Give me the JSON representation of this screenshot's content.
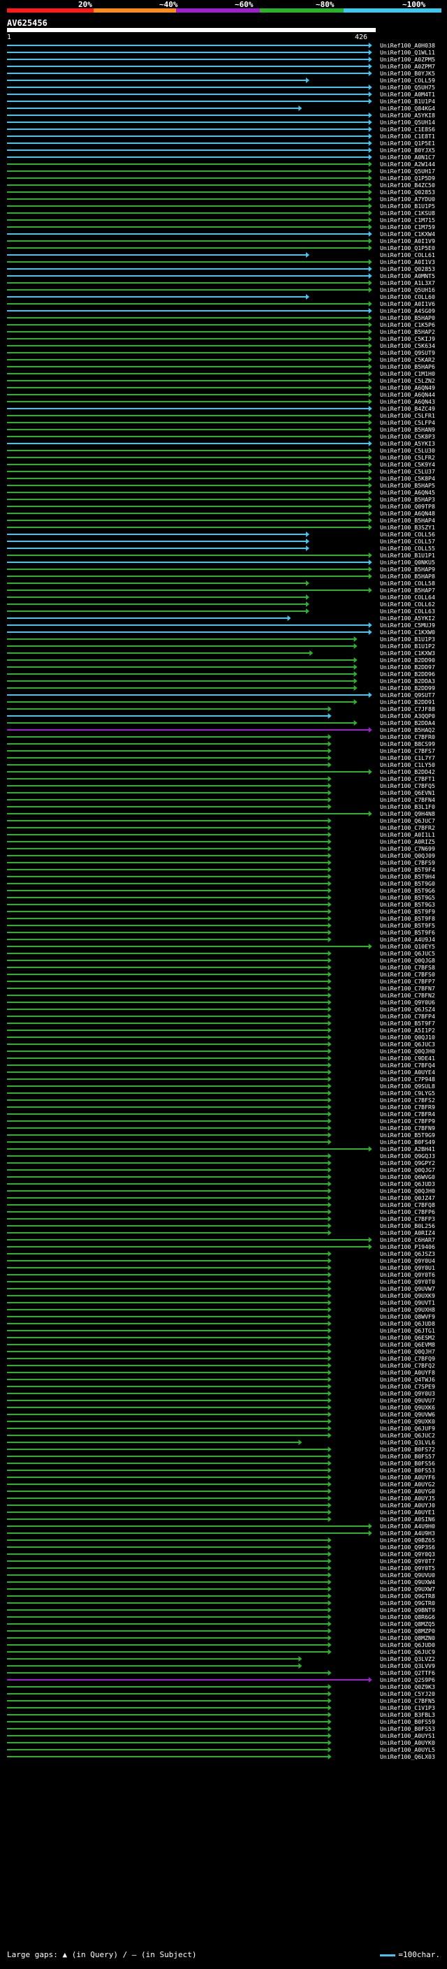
{
  "legend": {
    "labels": [
      "20%",
      "~40%",
      "~60%",
      "~80%",
      "~100%"
    ],
    "colors": [
      "#ff1a1a",
      "#ff8c1a",
      "#a020d0",
      "#2ab32a",
      "#3ec8f0"
    ]
  },
  "query": {
    "id": "AV625456",
    "start": "1",
    "end": "426"
  },
  "footer": {
    "gaps_text": "Large gaps: ▲ (in Query) / — (in Subject)",
    "scale_text": "=100char."
  },
  "hits": [
    {
      "label": "UniRef100_A0H038",
      "c": 4,
      "e": 0.99
    },
    {
      "label": "UniRef100_Q1WL11",
      "c": 4,
      "e": 0.99
    },
    {
      "label": "UniRef100_A0ZPM5",
      "c": 4,
      "e": 0.99
    },
    {
      "label": "UniRef100_A0ZPM7",
      "c": 4,
      "e": 0.99
    },
    {
      "label": "UniRef100_B0YJK5",
      "c": 4,
      "e": 0.99
    },
    {
      "label": "UniRef100_COLL59",
      "c": 4,
      "e": 0.82
    },
    {
      "label": "UniRef100_Q5UH75",
      "c": 4,
      "e": 0.99
    },
    {
      "label": "UniRef100_A0M4T1",
      "c": 4,
      "e": 0.99
    },
    {
      "label": "UniRef100_B1U1P4",
      "c": 4,
      "e": 0.99
    },
    {
      "label": "UniRef100_Q84KG4",
      "c": 4,
      "e": 0.8
    },
    {
      "label": "UniRef100_A5YKI8",
      "c": 4,
      "e": 0.99
    },
    {
      "label": "UniRef100_Q5UH14",
      "c": 4,
      "e": 0.99
    },
    {
      "label": "UniRef100_C1E8S6",
      "c": 4,
      "e": 0.99
    },
    {
      "label": "UniRef100_C1E8T1",
      "c": 4,
      "e": 0.99
    },
    {
      "label": "UniRef100_Q1P5E1",
      "c": 4,
      "e": 0.99
    },
    {
      "label": "UniRef100_B0YJX5",
      "c": 4,
      "e": 0.99
    },
    {
      "label": "UniRef100_A0N1C7",
      "c": 4,
      "e": 0.99
    },
    {
      "label": "UniRef100_A2W144",
      "c": 3,
      "e": 0.99
    },
    {
      "label": "UniRef100_Q5UH17",
      "c": 3,
      "e": 0.99
    },
    {
      "label": "UniRef100_Q1P5D9",
      "c": 3,
      "e": 0.99
    },
    {
      "label": "UniRef100_B4ZC50",
      "c": 3,
      "e": 0.99
    },
    {
      "label": "UniRef100_Q02853",
      "c": 3,
      "e": 0.99
    },
    {
      "label": "UniRef100_A7YDU0",
      "c": 3,
      "e": 0.99
    },
    {
      "label": "UniRef100_B1U1P5",
      "c": 3,
      "e": 0.99
    },
    {
      "label": "UniRef100_C1KSU8",
      "c": 3,
      "e": 0.99
    },
    {
      "label": "UniRef100_C1M715",
      "c": 3,
      "e": 0.99
    },
    {
      "label": "UniRef100_C1M759",
      "c": 3,
      "e": 0.99
    },
    {
      "label": "UniRef100_C1KXW4",
      "c": 4,
      "e": 0.99
    },
    {
      "label": "UniRef100_A0I1V9",
      "c": 3,
      "e": 0.99
    },
    {
      "label": "UniRef100_Q1P5E0",
      "c": 3,
      "e": 0.99
    },
    {
      "label": "UniRef100_COLL61",
      "c": 4,
      "e": 0.82
    },
    {
      "label": "UniRef100_A0I1V3",
      "c": 3,
      "e": 0.99
    },
    {
      "label": "UniRef100_Q02853",
      "c": 4,
      "e": 0.99
    },
    {
      "label": "UniRef100_A0MNT5",
      "c": 4,
      "e": 0.99
    },
    {
      "label": "UniRef100_A1L3X7",
      "c": 3,
      "e": 0.99
    },
    {
      "label": "UniRef100_Q5UH16",
      "c": 3,
      "e": 0.99
    },
    {
      "label": "UniRef100_COLL60",
      "c": 4,
      "e": 0.82
    },
    {
      "label": "UniRef100_A0I1V6",
      "c": 3,
      "e": 0.99
    },
    {
      "label": "UniRef100_A4SG09",
      "c": 4,
      "e": 0.99
    },
    {
      "label": "UniRef100_B5HAP0",
      "c": 3,
      "e": 0.99
    },
    {
      "label": "UniRef100_C1K5P6",
      "c": 3,
      "e": 0.99
    },
    {
      "label": "UniRef100_B5HAP2",
      "c": 3,
      "e": 0.99
    },
    {
      "label": "UniRef100_C5KIJ9",
      "c": 3,
      "e": 0.99
    },
    {
      "label": "UniRef100_C5K634",
      "c": 3,
      "e": 0.99
    },
    {
      "label": "UniRef100_Q9SUT9",
      "c": 3,
      "e": 0.99
    },
    {
      "label": "UniRef100_C5KAR2",
      "c": 3,
      "e": 0.99
    },
    {
      "label": "UniRef100_B5HAP6",
      "c": 3,
      "e": 0.99
    },
    {
      "label": "UniRef100_C1M1H0",
      "c": 3,
      "e": 0.99
    },
    {
      "label": "UniRef100_C5LZN2",
      "c": 3,
      "e": 0.99
    },
    {
      "label": "UniRef100_A6QN49",
      "c": 3,
      "e": 0.99
    },
    {
      "label": "UniRef100_A6QN44",
      "c": 3,
      "e": 0.99
    },
    {
      "label": "UniRef100_A6QN43",
      "c": 3,
      "e": 0.99
    },
    {
      "label": "UniRef100_B4ZC49",
      "c": 4,
      "e": 0.99
    },
    {
      "label": "UniRef100_C5LFR1",
      "c": 3,
      "e": 0.99
    },
    {
      "label": "UniRef100_C5LFP4",
      "c": 3,
      "e": 0.99
    },
    {
      "label": "UniRef100_B5HAN9",
      "c": 3,
      "e": 0.99
    },
    {
      "label": "UniRef100_C5K8P3",
      "c": 3,
      "e": 0.99
    },
    {
      "label": "UniRef100_A5YKI3",
      "c": 4,
      "e": 0.99
    },
    {
      "label": "UniRef100_C5LU30",
      "c": 3,
      "e": 0.99
    },
    {
      "label": "UniRef100_C5LFR2",
      "c": 3,
      "e": 0.99
    },
    {
      "label": "UniRef100_C5K9Y4",
      "c": 3,
      "e": 0.99
    },
    {
      "label": "UniRef100_C5LU37",
      "c": 3,
      "e": 0.99
    },
    {
      "label": "UniRef100_C5K8P4",
      "c": 3,
      "e": 0.99
    },
    {
      "label": "UniRef100_B5HAP5",
      "c": 3,
      "e": 0.99
    },
    {
      "label": "UniRef100_A6QN45",
      "c": 3,
      "e": 0.99
    },
    {
      "label": "UniRef100_B5HAP3",
      "c": 3,
      "e": 0.99
    },
    {
      "label": "UniRef100_Q09TP8",
      "c": 3,
      "e": 0.99
    },
    {
      "label": "UniRef100_A6QN48",
      "c": 3,
      "e": 0.99
    },
    {
      "label": "UniRef100_B5HAP4",
      "c": 3,
      "e": 0.99
    },
    {
      "label": "UniRef100_B3SZY1",
      "c": 3,
      "e": 0.99
    },
    {
      "label": "UniRef100_COLL56",
      "c": 4,
      "e": 0.82
    },
    {
      "label": "UniRef100_COLL57",
      "c": 4,
      "e": 0.82
    },
    {
      "label": "UniRef100_COLL55",
      "c": 4,
      "e": 0.82
    },
    {
      "label": "UniRef100_B1U1P1",
      "c": 3,
      "e": 0.99
    },
    {
      "label": "UniRef100_Q0NKU5",
      "c": 4,
      "e": 0.99
    },
    {
      "label": "UniRef100_B5HAP9",
      "c": 3,
      "e": 0.99
    },
    {
      "label": "UniRef100_B5HAP8",
      "c": 3,
      "e": 0.99
    },
    {
      "label": "UniRef100_COLL58",
      "c": 3,
      "e": 0.82
    },
    {
      "label": "UniRef100_B5HAP7",
      "c": 3,
      "e": 0.99
    },
    {
      "label": "UniRef100_COLL64",
      "c": 3,
      "e": 0.82
    },
    {
      "label": "UniRef100_COLL62",
      "c": 3,
      "e": 0.82
    },
    {
      "label": "UniRef100_COLL63",
      "c": 3,
      "e": 0.82
    },
    {
      "label": "UniRef100_A5YKI2",
      "c": 4,
      "e": 0.77
    },
    {
      "label": "UniRef100_C5MUJ9",
      "c": 4,
      "e": 0.99
    },
    {
      "label": "UniRef100_C1KXW0",
      "c": 4,
      "e": 0.99
    },
    {
      "label": "UniRef100_B1U1P3",
      "c": 3,
      "e": 0.95
    },
    {
      "label": "UniRef100_B1U1P2",
      "c": 3,
      "e": 0.95
    },
    {
      "label": "UniRef100_C1KXW3",
      "c": 3,
      "e": 0.83
    },
    {
      "label": "UniRef100_B2DD90",
      "c": 3,
      "e": 0.95
    },
    {
      "label": "UniRef100_B2DD97",
      "c": 3,
      "e": 0.95
    },
    {
      "label": "UniRef100_B2DD96",
      "c": 3,
      "e": 0.95
    },
    {
      "label": "UniRef100_B2DDA3",
      "c": 3,
      "e": 0.95
    },
    {
      "label": "UniRef100_B2DD99",
      "c": 3,
      "e": 0.95
    },
    {
      "label": "UniRef100_Q9SUT7",
      "c": 4,
      "e": 0.99
    },
    {
      "label": "UniRef100_B2DD91",
      "c": 3,
      "e": 0.95
    },
    {
      "label": "UniRef100_C7JF88",
      "c": 3,
      "e": 0.88
    },
    {
      "label": "UniRef100_A3QQP0",
      "c": 4,
      "e": 0.88
    },
    {
      "label": "UniRef100_B2DDA4",
      "c": 3,
      "e": 0.95
    },
    {
      "label": "UniRef100_B5HAQ2",
      "c": 2,
      "e": 0.99
    },
    {
      "label": "UniRef100_C7BFR0",
      "c": 3,
      "e": 0.88
    },
    {
      "label": "UniRef100_B8CS99",
      "c": 3,
      "e": 0.88
    },
    {
      "label": "UniRef100_C7BFS7",
      "c": 3,
      "e": 0.88
    },
    {
      "label": "UniRef100_C1L7Y7",
      "c": 3,
      "e": 0.88
    },
    {
      "label": "UniRef100_C1LY50",
      "c": 3,
      "e": 0.88
    },
    {
      "label": "UniRef100_B2DD42",
      "c": 3,
      "e": 0.99
    },
    {
      "label": "UniRef100_C7BFT1",
      "c": 3,
      "e": 0.88
    },
    {
      "label": "UniRef100_C7BFQ5",
      "c": 3,
      "e": 0.88
    },
    {
      "label": "UniRef100_Q6EVN1",
      "c": 3,
      "e": 0.88
    },
    {
      "label": "UniRef100_C7BFN4",
      "c": 3,
      "e": 0.88
    },
    {
      "label": "UniRef100_B3L1F0",
      "c": 3,
      "e": 0.88
    },
    {
      "label": "UniRef100_Q9H4N8",
      "c": 3,
      "e": 0.99
    },
    {
      "label": "UniRef100_Q6JUC7",
      "c": 3,
      "e": 0.88
    },
    {
      "label": "UniRef100_C7BFR2",
      "c": 3,
      "e": 0.88
    },
    {
      "label": "UniRef100_A0I1L1",
      "c": 3,
      "e": 0.88
    },
    {
      "label": "UniRef100_A0RIZ5",
      "c": 3,
      "e": 0.88
    },
    {
      "label": "UniRef100_C7N699",
      "c": 3,
      "e": 0.88
    },
    {
      "label": "UniRef100_Q0QJ09",
      "c": 3,
      "e": 0.88
    },
    {
      "label": "UniRef100_C7BFS9",
      "c": 3,
      "e": 0.88
    },
    {
      "label": "UniRef100_B5T9F4",
      "c": 3,
      "e": 0.88
    },
    {
      "label": "UniRef100_B5T9H4",
      "c": 3,
      "e": 0.88
    },
    {
      "label": "UniRef100_B5T9G0",
      "c": 3,
      "e": 0.88
    },
    {
      "label": "UniRef100_B5T9G6",
      "c": 3,
      "e": 0.88
    },
    {
      "label": "UniRef100_B5T9G5",
      "c": 3,
      "e": 0.88
    },
    {
      "label": "UniRef100_B5T9G3",
      "c": 3,
      "e": 0.88
    },
    {
      "label": "UniRef100_B5T9F9",
      "c": 3,
      "e": 0.88
    },
    {
      "label": "UniRef100_B5T9F8",
      "c": 3,
      "e": 0.88
    },
    {
      "label": "UniRef100_B5T9F5",
      "c": 3,
      "e": 0.88
    },
    {
      "label": "UniRef100_B5T9F6",
      "c": 3,
      "e": 0.88
    },
    {
      "label": "UniRef100_A4U9J4",
      "c": 3,
      "e": 0.88
    },
    {
      "label": "UniRef100_Q10EY5",
      "c": 3,
      "e": 0.99
    },
    {
      "label": "UniRef100_Q6JUC5",
      "c": 3,
      "e": 0.88
    },
    {
      "label": "UniRef100_Q0QJG8",
      "c": 3,
      "e": 0.88
    },
    {
      "label": "UniRef100_C7BFS8",
      "c": 3,
      "e": 0.88
    },
    {
      "label": "UniRef100_C7BFS0",
      "c": 3,
      "e": 0.88
    },
    {
      "label": "UniRef100_C7BFP7",
      "c": 3,
      "e": 0.88
    },
    {
      "label": "UniRef100_C7BFN7",
      "c": 3,
      "e": 0.88
    },
    {
      "label": "UniRef100_C7BFN2",
      "c": 3,
      "e": 0.88
    },
    {
      "label": "UniRef100_Q9Y0U6",
      "c": 3,
      "e": 0.88
    },
    {
      "label": "UniRef100_Q6JSZ4",
      "c": 3,
      "e": 0.88
    },
    {
      "label": "UniRef100_C7BFP4",
      "c": 3,
      "e": 0.88
    },
    {
      "label": "UniRef100_B5T9F7",
      "c": 3,
      "e": 0.88
    },
    {
      "label": "UniRef100_A5I1P2",
      "c": 3,
      "e": 0.88
    },
    {
      "label": "UniRef100_Q0QJ10",
      "c": 3,
      "e": 0.88
    },
    {
      "label": "UniRef100_Q6JUC3",
      "c": 3,
      "e": 0.88
    },
    {
      "label": "UniRef100_Q0QJH0",
      "c": 3,
      "e": 0.88
    },
    {
      "label": "UniRef100_C9DE41",
      "c": 3,
      "e": 0.88
    },
    {
      "label": "UniRef100_C7BFQ4",
      "c": 3,
      "e": 0.88
    },
    {
      "label": "UniRef100_A0UYE4",
      "c": 3,
      "e": 0.88
    },
    {
      "label": "UniRef100_C7P948",
      "c": 3,
      "e": 0.88
    },
    {
      "label": "UniRef100_Q9SUL8",
      "c": 3,
      "e": 0.88
    },
    {
      "label": "UniRef100_C9LYG5",
      "c": 3,
      "e": 0.88
    },
    {
      "label": "UniRef100_C7BFS2",
      "c": 3,
      "e": 0.88
    },
    {
      "label": "UniRef100_C7BFR9",
      "c": 3,
      "e": 0.88
    },
    {
      "label": "UniRef100_C7BFR4",
      "c": 3,
      "e": 0.88
    },
    {
      "label": "UniRef100_C7BFP9",
      "c": 3,
      "e": 0.88
    },
    {
      "label": "UniRef100_C7BFN9",
      "c": 3,
      "e": 0.88
    },
    {
      "label": "UniRef100_B5T9G9",
      "c": 3,
      "e": 0.88
    },
    {
      "label": "UniRef100_B0FS49",
      "c": 3,
      "e": 0.88
    },
    {
      "label": "UniRef100_A2BH41",
      "c": 3,
      "e": 0.99
    },
    {
      "label": "UniRef100_Q9GQJ3",
      "c": 3,
      "e": 0.88
    },
    {
      "label": "UniRef100_Q9GPY2",
      "c": 3,
      "e": 0.88
    },
    {
      "label": "UniRef100_Q0QJG7",
      "c": 3,
      "e": 0.88
    },
    {
      "label": "UniRef100_Q6WVG0",
      "c": 3,
      "e": 0.88
    },
    {
      "label": "UniRef100_Q6JUD3",
      "c": 3,
      "e": 0.88
    },
    {
      "label": "UniRef100_Q0QJH0",
      "c": 3,
      "e": 0.88
    },
    {
      "label": "UniRef100_Q0JZ47",
      "c": 3,
      "e": 0.88
    },
    {
      "label": "UniRef100_C7BFQ8",
      "c": 3,
      "e": 0.88
    },
    {
      "label": "UniRef100_C7BFP6",
      "c": 3,
      "e": 0.88
    },
    {
      "label": "UniRef100_C7BFP3",
      "c": 3,
      "e": 0.88
    },
    {
      "label": "UniRef100_B0L256",
      "c": 3,
      "e": 0.88
    },
    {
      "label": "UniRef100_A0RIZ4",
      "c": 3,
      "e": 0.88
    },
    {
      "label": "UniRef100_C6HAR7",
      "c": 3,
      "e": 0.99
    },
    {
      "label": "UniRef100_P19406",
      "c": 3,
      "e": 0.99
    },
    {
      "label": "UniRef100_Q6JSZ3",
      "c": 3,
      "e": 0.88
    },
    {
      "label": "UniRef100_Q9Y0U4",
      "c": 3,
      "e": 0.88
    },
    {
      "label": "UniRef100_Q9Y0U1",
      "c": 3,
      "e": 0.88
    },
    {
      "label": "UniRef100_Q9Y0T6",
      "c": 3,
      "e": 0.88
    },
    {
      "label": "UniRef100_Q9Y0T0",
      "c": 3,
      "e": 0.88
    },
    {
      "label": "UniRef100_Q9UVW7",
      "c": 3,
      "e": 0.88
    },
    {
      "label": "UniRef100_Q9UXK9",
      "c": 3,
      "e": 0.88
    },
    {
      "label": "UniRef100_Q9UVT1",
      "c": 3,
      "e": 0.88
    },
    {
      "label": "UniRef100_Q9UXH8",
      "c": 3,
      "e": 0.88
    },
    {
      "label": "UniRef100_Q8WVF9",
      "c": 3,
      "e": 0.88
    },
    {
      "label": "UniRef100_Q6JUD8",
      "c": 3,
      "e": 0.88
    },
    {
      "label": "UniRef100_Q6JTG1",
      "c": 3,
      "e": 0.88
    },
    {
      "label": "UniRef100_Q6ESM2",
      "c": 3,
      "e": 0.88
    },
    {
      "label": "UniRef100_Q6EVM8",
      "c": 3,
      "e": 0.88
    },
    {
      "label": "UniRef100_Q0QJH7",
      "c": 3,
      "e": 0.88
    },
    {
      "label": "UniRef100_C7BFQ9",
      "c": 3,
      "e": 0.88
    },
    {
      "label": "UniRef100_C7BFQ2",
      "c": 3,
      "e": 0.88
    },
    {
      "label": "UniRef100_A0UYF8",
      "c": 3,
      "e": 0.88
    },
    {
      "label": "UniRef100_Q4TWJ6",
      "c": 3,
      "e": 0.88
    },
    {
      "label": "UniRef100_C7SPE9",
      "c": 3,
      "e": 0.88
    },
    {
      "label": "UniRef100_Q9Y0U3",
      "c": 3,
      "e": 0.88
    },
    {
      "label": "UniRef100_Q9UVU7",
      "c": 3,
      "e": 0.88
    },
    {
      "label": "UniRef100_Q9UXK6",
      "c": 3,
      "e": 0.88
    },
    {
      "label": "UniRef100_Q9UVW6",
      "c": 3,
      "e": 0.88
    },
    {
      "label": "UniRef100_Q9UXK0",
      "c": 3,
      "e": 0.88
    },
    {
      "label": "UniRef100_Q6JUF9",
      "c": 3,
      "e": 0.88
    },
    {
      "label": "UniRef100_Q6JUC2",
      "c": 3,
      "e": 0.88
    },
    {
      "label": "UniRef100_Q3LVL6",
      "c": 3,
      "e": 0.8
    },
    {
      "label": "UniRef100_B0FS72",
      "c": 3,
      "e": 0.88
    },
    {
      "label": "UniRef100_B0FS57",
      "c": 3,
      "e": 0.88
    },
    {
      "label": "UniRef100_B0FS56",
      "c": 3,
      "e": 0.88
    },
    {
      "label": "UniRef100_B0FS53",
      "c": 3,
      "e": 0.88
    },
    {
      "label": "UniRef100_A0UYF6",
      "c": 3,
      "e": 0.88
    },
    {
      "label": "UniRef100_A0UYG2",
      "c": 3,
      "e": 0.88
    },
    {
      "label": "UniRef100_A0UYG0",
      "c": 3,
      "e": 0.88
    },
    {
      "label": "UniRef100_A0UYJ5",
      "c": 3,
      "e": 0.88
    },
    {
      "label": "UniRef100_A0UYJ0",
      "c": 3,
      "e": 0.88
    },
    {
      "label": "UniRef100_A0UYE1",
      "c": 3,
      "e": 0.88
    },
    {
      "label": "UniRef100_A0SIN6",
      "c": 3,
      "e": 0.88
    },
    {
      "label": "UniRef100_A4U9H0",
      "c": 3,
      "e": 0.99
    },
    {
      "label": "UniRef100_A4U9H3",
      "c": 3,
      "e": 0.99
    },
    {
      "label": "UniRef100_Q9BZ65",
      "c": 3,
      "e": 0.88
    },
    {
      "label": "UniRef100_Q9P3S6",
      "c": 3,
      "e": 0.88
    },
    {
      "label": "UniRef100_Q9Y0Q3",
      "c": 3,
      "e": 0.88
    },
    {
      "label": "UniRef100_Q9Y0T7",
      "c": 3,
      "e": 0.88
    },
    {
      "label": "UniRef100_Q9Y0T5",
      "c": 3,
      "e": 0.88
    },
    {
      "label": "UniRef100_Q9UVU0",
      "c": 3,
      "e": 0.88
    },
    {
      "label": "UniRef100_Q9UXW4",
      "c": 3,
      "e": 0.88
    },
    {
      "label": "UniRef100_Q9UXW7",
      "c": 3,
      "e": 0.88
    },
    {
      "label": "UniRef100_Q9GTR8",
      "c": 3,
      "e": 0.88
    },
    {
      "label": "UniRef100_Q9GTR0",
      "c": 3,
      "e": 0.88
    },
    {
      "label": "UniRef100_Q9BNT9",
      "c": 3,
      "e": 0.88
    },
    {
      "label": "UniRef100_Q8R6G6",
      "c": 3,
      "e": 0.88
    },
    {
      "label": "UniRef100_Q8MZQ5",
      "c": 3,
      "e": 0.88
    },
    {
      "label": "UniRef100_Q8MZP0",
      "c": 3,
      "e": 0.88
    },
    {
      "label": "UniRef100_Q8MZN0",
      "c": 3,
      "e": 0.88
    },
    {
      "label": "UniRef100_Q6JUD0",
      "c": 3,
      "e": 0.88
    },
    {
      "label": "UniRef100_Q6JUC9",
      "c": 3,
      "e": 0.88
    },
    {
      "label": "UniRef100_Q3LVZ2",
      "c": 3,
      "e": 0.8
    },
    {
      "label": "UniRef100_Q3LVV9",
      "c": 3,
      "e": 0.8
    },
    {
      "label": "UniRef100_Q2TTF6",
      "c": 3,
      "e": 0.88
    },
    {
      "label": "UniRef100_Q2S9P6",
      "c": 2,
      "e": 0.99
    },
    {
      "label": "UniRef100_Q0Z9K3",
      "c": 3,
      "e": 0.88
    },
    {
      "label": "UniRef100_C5YJ20",
      "c": 3,
      "e": 0.88
    },
    {
      "label": "UniRef100_C7BFN5",
      "c": 3,
      "e": 0.88
    },
    {
      "label": "UniRef100_C1V1P3",
      "c": 3,
      "e": 0.88
    },
    {
      "label": "UniRef100_B3FBL3",
      "c": 3,
      "e": 0.88
    },
    {
      "label": "UniRef100_B0FS59",
      "c": 3,
      "e": 0.88
    },
    {
      "label": "UniRef100_B0FS53",
      "c": 3,
      "e": 0.88
    },
    {
      "label": "UniRef100_A0UYS1",
      "c": 3,
      "e": 0.88
    },
    {
      "label": "UniRef100_A0UYK0",
      "c": 3,
      "e": 0.88
    },
    {
      "label": "UniRef100_A0UYL5",
      "c": 3,
      "e": 0.88
    },
    {
      "label": "UniRef100_Q6LX03",
      "c": 3,
      "e": 0.88
    }
  ]
}
